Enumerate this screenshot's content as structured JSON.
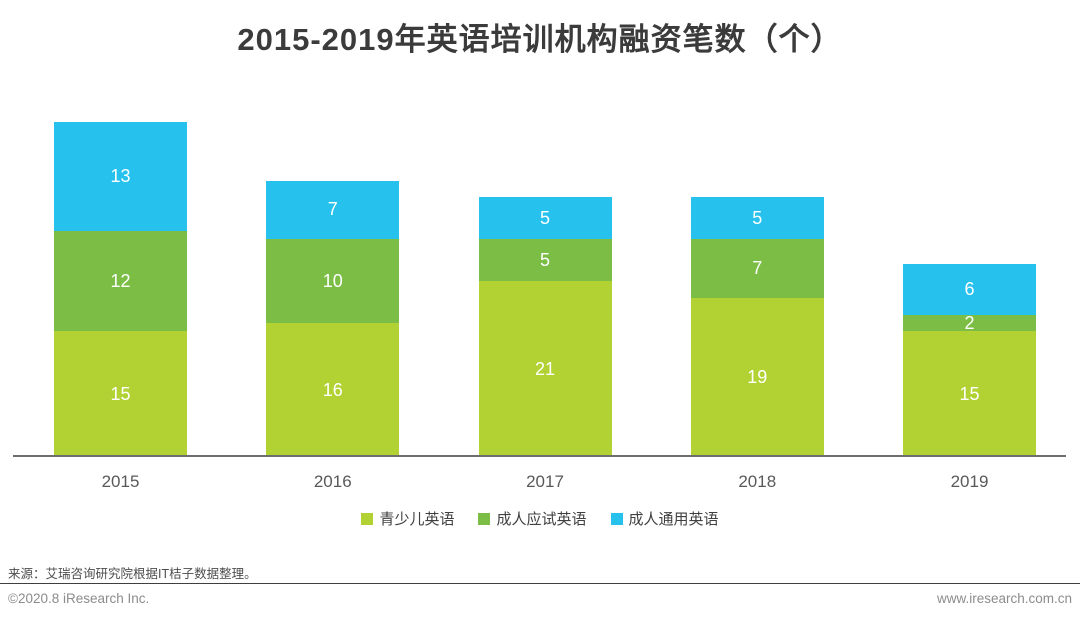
{
  "title": "2015-2019年英语培训机构融资笔数（个）",
  "chart_data": {
    "type": "bar",
    "stacked": true,
    "title": "2015-2019年英语培训机构融资笔数（个）",
    "categories": [
      "2015",
      "2016",
      "2017",
      "2018",
      "2019"
    ],
    "series": [
      {
        "name": "青少儿英语",
        "color": "#B2D234",
        "values": [
          15,
          16,
          21,
          19,
          15
        ]
      },
      {
        "name": "成人应试英语",
        "color": "#7CBE45",
        "values": [
          12,
          10,
          5,
          7,
          2
        ]
      },
      {
        "name": "成人通用英语",
        "color": "#26C2ED",
        "values": [
          13,
          7,
          5,
          5,
          6
        ]
      }
    ],
    "totals": [
      40,
      33,
      31,
      31,
      23
    ],
    "ylim": [
      0,
      40
    ],
    "grid": false,
    "y_axis_visible": false,
    "value_labels": "inside-segments-white",
    "legend_position": "bottom-center",
    "pixels_per_unit": 8.375
  },
  "footer": {
    "source": "来源：艾瑞咨询研究院根据IT桔子数据整理。",
    "copyright": "©2020.8 iResearch Inc.",
    "website": "www.iresearch.com.cn"
  }
}
